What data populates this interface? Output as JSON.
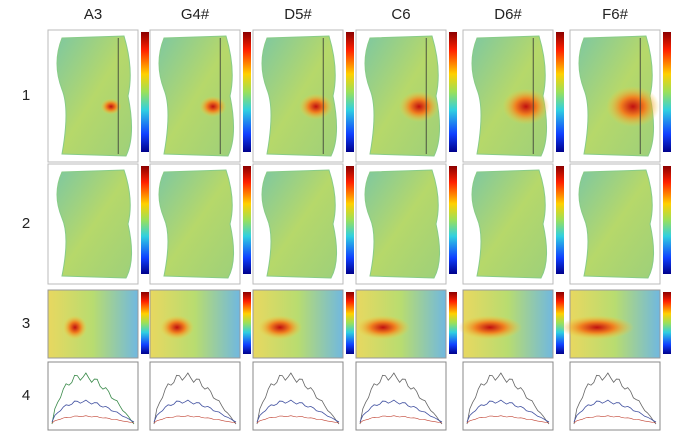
{
  "columns": [
    "A3",
    "G4#",
    "D5#",
    "C6",
    "D6#",
    "F6#"
  ],
  "rows": [
    "1",
    "2",
    "3",
    "4"
  ]
}
